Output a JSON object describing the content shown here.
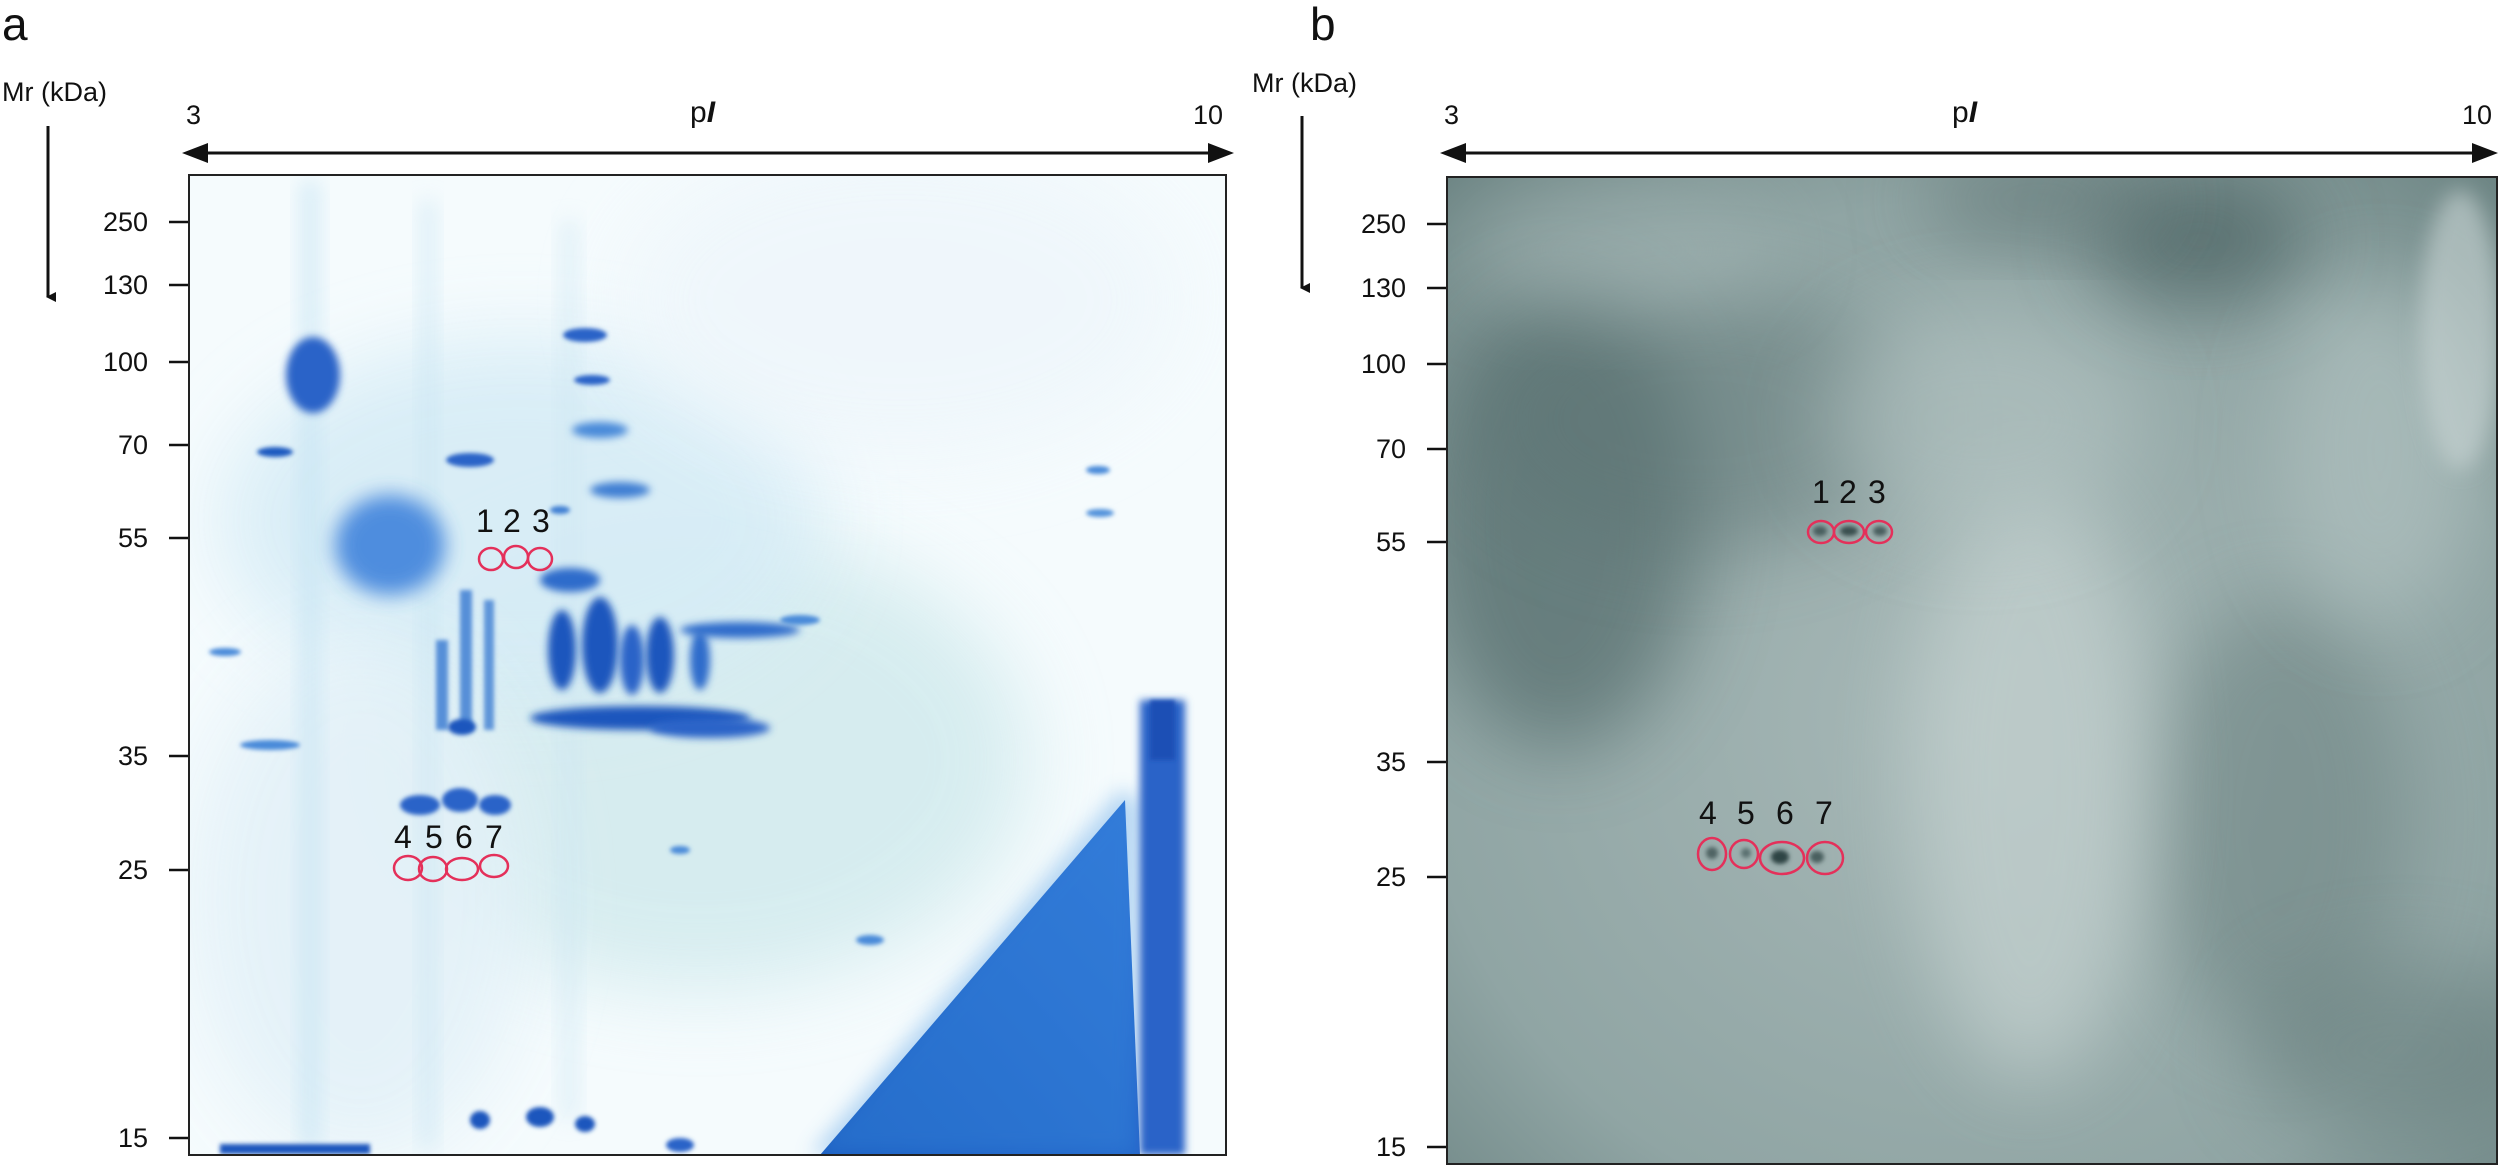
{
  "panels": [
    {
      "letter": "a",
      "y_axis_label": "Mr (kDa)",
      "x_axis_label_prefix": "p",
      "x_axis_label_italic": "I",
      "x_min_label": "3",
      "x_max_label": "10",
      "mw_ticks": [
        "250",
        "130",
        "100",
        "70",
        "55",
        "35",
        "25",
        "15"
      ],
      "spot_groups": [
        {
          "labels": [
            "1",
            "2",
            "3"
          ]
        },
        {
          "labels": [
            "4",
            "5",
            "6",
            "7"
          ]
        }
      ],
      "stain": "Coomassie-stained 2-DE gel"
    },
    {
      "letter": "b",
      "y_axis_label": "Mr (kDa)",
      "x_axis_label_prefix": "p",
      "x_axis_label_italic": "I",
      "x_min_label": "3",
      "x_max_label": "10",
      "mw_ticks": [
        "250",
        "130",
        "100",
        "70",
        "55",
        "35",
        "25",
        "15"
      ],
      "spot_groups": [
        {
          "labels": [
            "1",
            "2",
            "3"
          ]
        },
        {
          "labels": [
            "4",
            "5",
            "6",
            "7"
          ]
        }
      ],
      "stain": "2-DE immunoblot"
    }
  ],
  "colors": {
    "gel_background": "#f4fafc",
    "gel_stain": "#2a63c8",
    "gel_stain_dark": "#1650b0",
    "blot_background": "#8ea3a2",
    "blot_dark": "#4d6464",
    "spot_circle": "#e4305a",
    "axis": "#111111"
  }
}
